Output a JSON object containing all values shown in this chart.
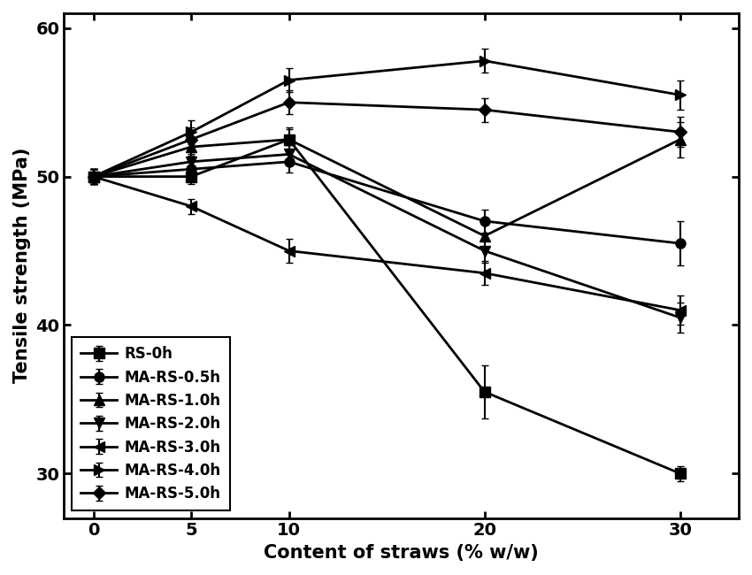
{
  "x": [
    0,
    5,
    10,
    20,
    30
  ],
  "series": [
    {
      "label": "RS-0h",
      "y": [
        50,
        50,
        52.5,
        35.5,
        30
      ],
      "yerr": [
        0.5,
        0.5,
        0.8,
        1.8,
        0.5
      ],
      "marker": "s",
      "markersize": 8
    },
    {
      "label": "MA-RS-0.5h",
      "y": [
        50,
        50.5,
        51.0,
        47.0,
        45.5
      ],
      "yerr": [
        0.5,
        0.5,
        0.7,
        0.8,
        1.5
      ],
      "marker": "o",
      "markersize": 8
    },
    {
      "label": "MA-RS-1.0h",
      "y": [
        50,
        52.0,
        52.5,
        46.0,
        52.5
      ],
      "yerr": [
        0.5,
        0.6,
        0.7,
        0.8,
        1.2
      ],
      "marker": "^",
      "markersize": 8
    },
    {
      "label": "MA-RS-2.0h",
      "y": [
        50,
        51.0,
        51.5,
        45.0,
        40.5
      ],
      "yerr": [
        0.5,
        0.5,
        0.7,
        0.8,
        1.0
      ],
      "marker": "v",
      "markersize": 8
    },
    {
      "label": "MA-RS-3.0h",
      "y": [
        50,
        48.0,
        45.0,
        43.5,
        41.0
      ],
      "yerr": [
        0.5,
        0.5,
        0.8,
        0.8,
        1.0
      ],
      "marker": "<",
      "markersize": 8
    },
    {
      "label": "MA-RS-4.0h",
      "y": [
        50,
        53.0,
        56.5,
        57.8,
        55.5
      ],
      "yerr": [
        0.5,
        0.8,
        0.8,
        0.8,
        1.0
      ],
      "marker": ">",
      "markersize": 8
    },
    {
      "label": "MA-RS-5.0h",
      "y": [
        50,
        52.5,
        55.0,
        54.5,
        53.0
      ],
      "yerr": [
        0.5,
        0.8,
        0.8,
        0.8,
        1.0
      ],
      "marker": "D",
      "markersize": 7
    }
  ],
  "xlabel": "Content of straws (% w/w)",
  "ylabel": "Tensile strength (MPa)",
  "xlim": [
    -1.5,
    33
  ],
  "ylim": [
    27,
    61
  ],
  "yticks": [
    30,
    40,
    50,
    60
  ],
  "xticks": [
    0,
    5,
    10,
    20,
    30
  ],
  "linewidth": 2.0,
  "capsize": 3,
  "elinewidth": 1.5,
  "color": "#000000",
  "legend_loc": "lower left",
  "legend_fontsize": 12,
  "axis_fontsize": 15,
  "tick_fontsize": 14,
  "background_color": "#ffffff",
  "fig_width": 8.5,
  "fig_height": 6.5
}
